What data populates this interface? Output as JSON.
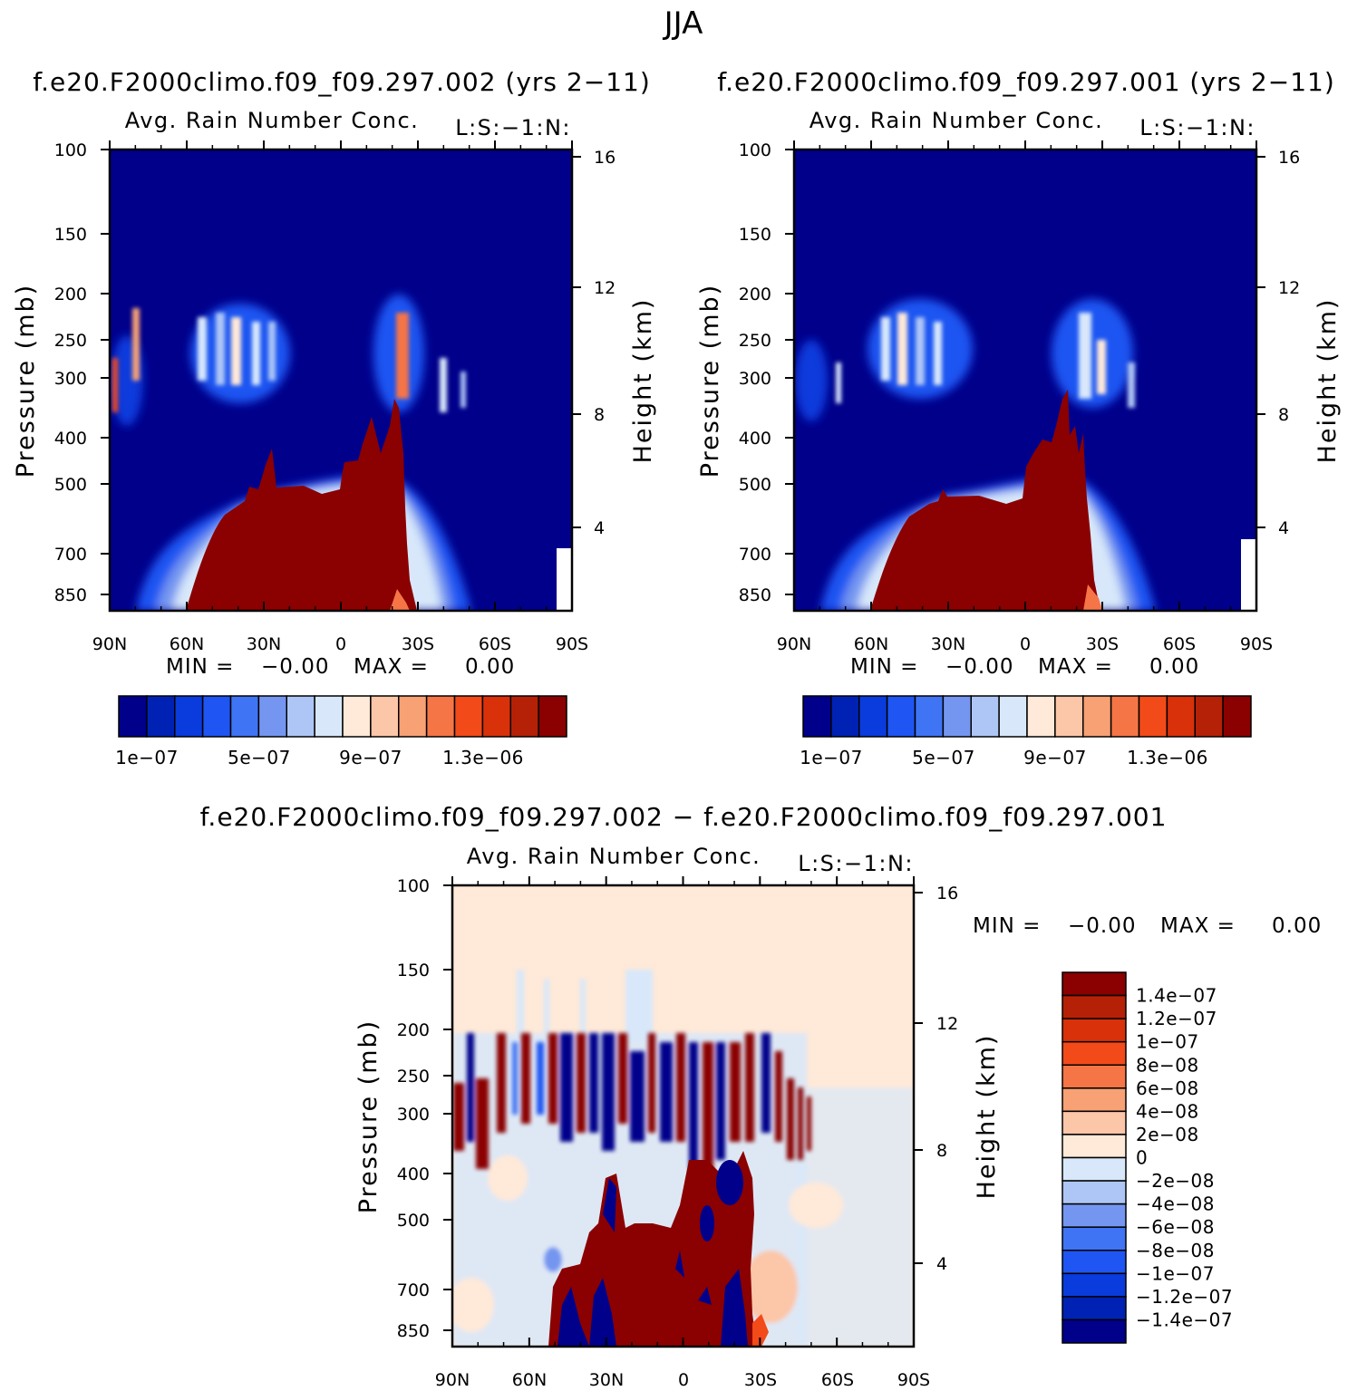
{
  "title": "JJA",
  "colors": {
    "background_field": "#00008b",
    "diff_background": "#ffe9d8",
    "outline": "#000000"
  },
  "chart_data": [
    {
      "type": "heatmap",
      "run_title": "f.e20.F2000climo.f09_f09.297.002 (yrs 2−11)",
      "title": "Avg. Rain Number Conc.",
      "corner_label": "L:S:−1:N:",
      "ylabel": "Pressure (mb)",
      "ylabel2": "Height (km)",
      "x_ticks": [
        "90N",
        "60N",
        "30N",
        "0",
        "30S",
        "60S",
        "90S"
      ],
      "y_ticks": [
        "100",
        "150",
        "200",
        "250",
        "300",
        "400",
        "500",
        "700",
        "850"
      ],
      "y2_ticks": [
        "16",
        "12",
        "8",
        "4"
      ],
      "stats": {
        "min_label": "MIN =",
        "min": "−0.00",
        "max_label": "MAX =",
        "max": "0.00"
      },
      "colorbar": {
        "colors": [
          "#00008b",
          "#0022b4",
          "#0a3bdc",
          "#1f55f2",
          "#3f74f5",
          "#7596f0",
          "#aec6f5",
          "#d8e8fa",
          "#ffe9d8",
          "#fcc6a8",
          "#f7a174",
          "#f67546",
          "#f34a1a",
          "#d9310a",
          "#b52106",
          "#8b0000"
        ],
        "labels": [
          "1e−07",
          "5e−07",
          "9e−07",
          "1.3e−06"
        ]
      }
    },
    {
      "type": "heatmap",
      "run_title": "f.e20.F2000climo.f09_f09.297.001 (yrs 2−11)",
      "title": "Avg. Rain Number Conc.",
      "corner_label": "L:S:−1:N:",
      "ylabel": "Pressure (mb)",
      "ylabel2": "Height (km)",
      "x_ticks": [
        "90N",
        "60N",
        "30N",
        "0",
        "30S",
        "60S",
        "90S"
      ],
      "y_ticks": [
        "100",
        "150",
        "200",
        "250",
        "300",
        "400",
        "500",
        "700",
        "850"
      ],
      "y2_ticks": [
        "16",
        "12",
        "8",
        "4"
      ],
      "stats": {
        "min_label": "MIN =",
        "min": "−0.00",
        "max_label": "MAX =",
        "max": "0.00"
      },
      "colorbar": {
        "colors": [
          "#00008b",
          "#0022b4",
          "#0a3bdc",
          "#1f55f2",
          "#3f74f5",
          "#7596f0",
          "#aec6f5",
          "#d8e8fa",
          "#ffe9d8",
          "#fcc6a8",
          "#f7a174",
          "#f67546",
          "#f34a1a",
          "#d9310a",
          "#b52106",
          "#8b0000"
        ],
        "labels": [
          "1e−07",
          "5e−07",
          "9e−07",
          "1.3e−06"
        ]
      }
    },
    {
      "type": "heatmap",
      "run_title": "f.e20.F2000climo.f09_f09.297.002 − f.e20.F2000climo.f09_f09.297.001",
      "title": "Avg. Rain Number Conc.",
      "corner_label": "L:S:−1:N:",
      "ylabel": "Pressure (mb)",
      "ylabel2": "Height (km)",
      "x_ticks": [
        "90N",
        "60N",
        "30N",
        "0",
        "30S",
        "60S",
        "90S"
      ],
      "y_ticks": [
        "100",
        "150",
        "200",
        "250",
        "300",
        "400",
        "500",
        "700",
        "850"
      ],
      "y2_ticks": [
        "16",
        "12",
        "8",
        "4"
      ],
      "stats": {
        "min_label": "MIN =",
        "min": "−0.00",
        "max_label": "MAX =",
        "max": "0.00"
      },
      "colorbar": {
        "colors": [
          "#8b0000",
          "#b52106",
          "#d9310a",
          "#f34a1a",
          "#f67546",
          "#f7a174",
          "#fcc6a8",
          "#ffe9d8",
          "#d8e8fa",
          "#aec6f5",
          "#7596f0",
          "#3f74f5",
          "#1f55f2",
          "#0a3bdc",
          "#0022b4",
          "#00008b"
        ],
        "labels": [
          "1.4e−07",
          "1.2e−07",
          "1e−07",
          "8e−08",
          "6e−08",
          "4e−08",
          "2e−08",
          "0",
          "−2e−08",
          "−4e−08",
          "−6e−08",
          "−8e−08",
          "−1e−07",
          "−1.2e−07",
          "−1.4e−07"
        ]
      }
    }
  ]
}
